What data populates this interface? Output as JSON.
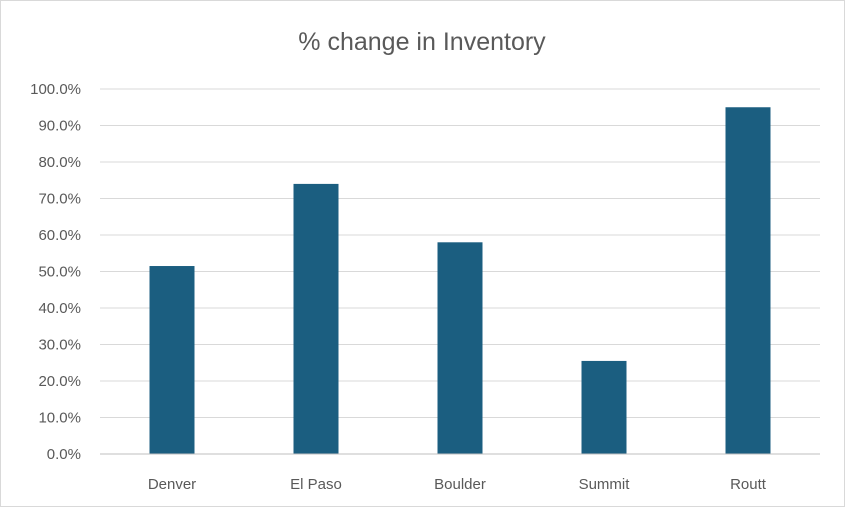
{
  "chart_data": {
    "type": "bar",
    "title": "% change in Inventory",
    "xlabel": "",
    "ylabel": "",
    "categories": [
      "Denver",
      "El Paso",
      "Boulder",
      "Summit",
      "Routt"
    ],
    "values": [
      51.5,
      74.0,
      58.0,
      25.5,
      95.0
    ],
    "ylim": [
      0,
      100
    ],
    "yticks": [
      0,
      10,
      20,
      30,
      40,
      50,
      60,
      70,
      80,
      90,
      100
    ],
    "ytick_labels": [
      "0.0%",
      "10.0%",
      "20.0%",
      "30.0%",
      "40.0%",
      "50.0%",
      "60.0%",
      "70.0%",
      "80.0%",
      "90.0%",
      "100.0%"
    ],
    "bar_color": "#1b5e80",
    "grid": true,
    "legend": "none"
  }
}
